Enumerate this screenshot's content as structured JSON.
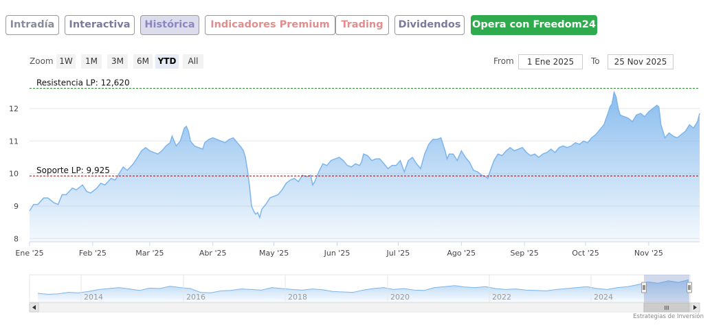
{
  "tabs": [
    {
      "label": "Intradía",
      "color": "#8a8a9e",
      "active": false
    },
    {
      "label": "Interactiva",
      "color": "#7a7a9c",
      "active": false
    },
    {
      "label": "Histórica",
      "color": "#8b86c0",
      "active": true
    },
    {
      "label": "Indicadores Premium",
      "color": "#e08e8e",
      "active": false
    },
    {
      "label": "Trading",
      "color": "#e08e8e",
      "active": false
    },
    {
      "label": "Dividendos",
      "color": "#7a7a9c",
      "active": false
    },
    {
      "label": "Opera con Freedom24",
      "color": "#ffffff",
      "background": "#2eab4c",
      "active": false
    }
  ],
  "range_selector": {
    "zoom_label": "Zoom",
    "buttons": [
      "1W",
      "1M",
      "3M",
      "6M",
      "YTD",
      "All"
    ],
    "selected": "YTD",
    "from_label": "From",
    "from_value": "1 Ene 2025",
    "to_label": "To",
    "to_value": "25 Nov 2025"
  },
  "chart_data": {
    "type": "area",
    "title": "",
    "xlabel": "",
    "ylabel": "",
    "x_ticks": [
      "Ene '25",
      "Feb '25",
      "Mar '25",
      "Abr '25",
      "May '25",
      "Jun '25",
      "Jul '25",
      "Ago '25",
      "Sep '25",
      "Oct '25",
      "Nov '25"
    ],
    "y_ticks": [
      "8",
      "9",
      "10",
      "11",
      "12"
    ],
    "ylim": [
      7.9,
      12.95
    ],
    "x_range_days": [
      0,
      329
    ],
    "grid": true,
    "series": [
      {
        "values": [
          [
            0,
            8.85
          ],
          [
            2,
            9.05
          ],
          [
            4,
            9.05
          ],
          [
            7,
            9.25
          ],
          [
            9,
            9.25
          ],
          [
            12,
            9.1
          ],
          [
            14,
            9.05
          ],
          [
            16,
            9.35
          ],
          [
            18,
            9.35
          ],
          [
            21,
            9.55
          ],
          [
            23,
            9.5
          ],
          [
            26,
            9.65
          ],
          [
            28,
            9.45
          ],
          [
            30,
            9.4
          ],
          [
            33,
            9.55
          ],
          [
            35,
            9.7
          ],
          [
            37,
            9.65
          ],
          [
            40,
            9.85
          ],
          [
            42,
            9.8
          ],
          [
            44,
            10.0
          ],
          [
            46,
            10.2
          ],
          [
            48,
            10.1
          ],
          [
            51,
            10.3
          ],
          [
            53,
            10.5
          ],
          [
            55,
            10.7
          ],
          [
            57,
            10.8
          ],
          [
            59,
            10.7
          ],
          [
            61,
            10.65
          ],
          [
            63,
            10.6
          ],
          [
            65,
            10.7
          ],
          [
            67,
            10.85
          ],
          [
            69,
            10.95
          ],
          [
            70,
            11.15
          ],
          [
            71,
            11.0
          ],
          [
            72,
            10.85
          ],
          [
            74,
            11.0
          ],
          [
            76,
            11.4
          ],
          [
            77,
            11.45
          ],
          [
            78,
            11.3
          ],
          [
            79,
            11.0
          ],
          [
            81,
            10.85
          ],
          [
            83,
            10.8
          ],
          [
            85,
            10.75
          ],
          [
            86,
            10.95
          ],
          [
            88,
            11.05
          ],
          [
            90,
            11.1
          ],
          [
            92,
            11.05
          ],
          [
            94,
            11.0
          ],
          [
            96,
            10.95
          ],
          [
            98,
            11.05
          ],
          [
            100,
            11.1
          ],
          [
            102,
            10.95
          ],
          [
            104,
            10.8
          ],
          [
            105,
            10.7
          ],
          [
            106,
            10.5
          ],
          [
            107,
            10.1
          ],
          [
            108,
            9.6
          ],
          [
            109,
            9.0
          ],
          [
            110,
            8.85
          ],
          [
            111,
            8.75
          ],
          [
            112,
            8.8
          ],
          [
            113,
            8.65
          ],
          [
            114,
            8.9
          ],
          [
            116,
            9.05
          ],
          [
            118,
            9.25
          ],
          [
            120,
            9.3
          ],
          [
            122,
            9.35
          ],
          [
            124,
            9.5
          ],
          [
            126,
            9.7
          ],
          [
            128,
            9.8
          ],
          [
            130,
            9.85
          ],
          [
            132,
            9.75
          ],
          [
            134,
            9.95
          ],
          [
            136,
            9.9
          ],
          [
            138,
            9.95
          ],
          [
            139,
            9.65
          ],
          [
            140,
            9.75
          ],
          [
            142,
            10.05
          ],
          [
            144,
            10.3
          ],
          [
            146,
            10.25
          ],
          [
            148,
            10.4
          ],
          [
            150,
            10.45
          ],
          [
            152,
            10.5
          ],
          [
            154,
            10.4
          ],
          [
            156,
            10.25
          ],
          [
            158,
            10.2
          ],
          [
            160,
            10.3
          ],
          [
            162,
            10.25
          ],
          [
            163,
            10.35
          ],
          [
            164,
            10.6
          ],
          [
            166,
            10.55
          ],
          [
            168,
            10.4
          ],
          [
            170,
            10.45
          ],
          [
            172,
            10.45
          ],
          [
            174,
            10.3
          ],
          [
            176,
            10.15
          ],
          [
            178,
            10.25
          ],
          [
            180,
            10.25
          ],
          [
            182,
            10.4
          ],
          [
            184,
            10.05
          ],
          [
            186,
            10.4
          ],
          [
            188,
            10.5
          ],
          [
            190,
            10.3
          ],
          [
            192,
            10.15
          ],
          [
            194,
            10.6
          ],
          [
            196,
            10.9
          ],
          [
            198,
            11.05
          ],
          [
            200,
            11.05
          ],
          [
            202,
            11.1
          ],
          [
            204,
            10.7
          ],
          [
            205,
            10.45
          ],
          [
            206,
            10.6
          ],
          [
            208,
            10.6
          ],
          [
            210,
            10.4
          ],
          [
            212,
            10.7
          ],
          [
            214,
            10.5
          ],
          [
            216,
            10.35
          ],
          [
            218,
            10.1
          ],
          [
            220,
            10.05
          ],
          [
            222,
            9.95
          ],
          [
            224,
            9.9
          ],
          [
            225,
            9.85
          ],
          [
            226,
            10.05
          ],
          [
            228,
            10.4
          ],
          [
            230,
            10.6
          ],
          [
            232,
            10.55
          ],
          [
            234,
            10.7
          ],
          [
            236,
            10.8
          ],
          [
            238,
            10.7
          ],
          [
            240,
            10.75
          ],
          [
            242,
            10.8
          ],
          [
            244,
            10.65
          ],
          [
            246,
            10.55
          ],
          [
            248,
            10.6
          ],
          [
            250,
            10.5
          ],
          [
            252,
            10.6
          ],
          [
            254,
            10.65
          ],
          [
            256,
            10.75
          ],
          [
            258,
            10.65
          ],
          [
            260,
            10.8
          ],
          [
            262,
            10.85
          ],
          [
            264,
            10.8
          ],
          [
            266,
            10.85
          ],
          [
            268,
            10.95
          ],
          [
            270,
            10.9
          ],
          [
            272,
            11.0
          ],
          [
            274,
            10.95
          ],
          [
            276,
            11.1
          ],
          [
            278,
            11.2
          ],
          [
            280,
            11.35
          ],
          [
            282,
            11.5
          ],
          [
            284,
            11.85
          ],
          [
            285,
            12.05
          ],
          [
            286,
            12.15
          ],
          [
            287,
            12.5
          ],
          [
            288,
            12.35
          ],
          [
            289,
            12.0
          ],
          [
            290,
            11.8
          ],
          [
            292,
            11.75
          ],
          [
            294,
            11.7
          ],
          [
            296,
            11.6
          ],
          [
            298,
            11.8
          ],
          [
            300,
            11.85
          ],
          [
            302,
            11.75
          ],
          [
            304,
            11.9
          ],
          [
            306,
            12.0
          ],
          [
            308,
            12.1
          ],
          [
            309,
            12.05
          ],
          [
            310,
            11.5
          ],
          [
            312,
            11.1
          ],
          [
            314,
            11.25
          ],
          [
            316,
            11.15
          ],
          [
            318,
            11.1
          ],
          [
            320,
            11.2
          ],
          [
            322,
            11.3
          ],
          [
            324,
            11.5
          ],
          [
            326,
            11.4
          ],
          [
            328,
            11.6
          ],
          [
            329,
            11.85
          ]
        ],
        "color": "#7cb5ec"
      }
    ],
    "annotations": [
      {
        "label": "Resistencia LP: 12,620",
        "y": 12.62,
        "color": "#1a7a1a",
        "style": "dashed"
      },
      {
        "label": "Soporte LP: 9,925",
        "y": 9.925,
        "color": "#a00000",
        "style": "dashed"
      }
    ],
    "navigator": {
      "x_ticks": [
        "2014",
        "2016",
        "2018",
        "2020",
        "2022",
        "2024"
      ],
      "selection": "YTD",
      "scrollbar_handle": "III"
    }
  },
  "footer": {
    "credit": "Estrategias de Inversión"
  }
}
